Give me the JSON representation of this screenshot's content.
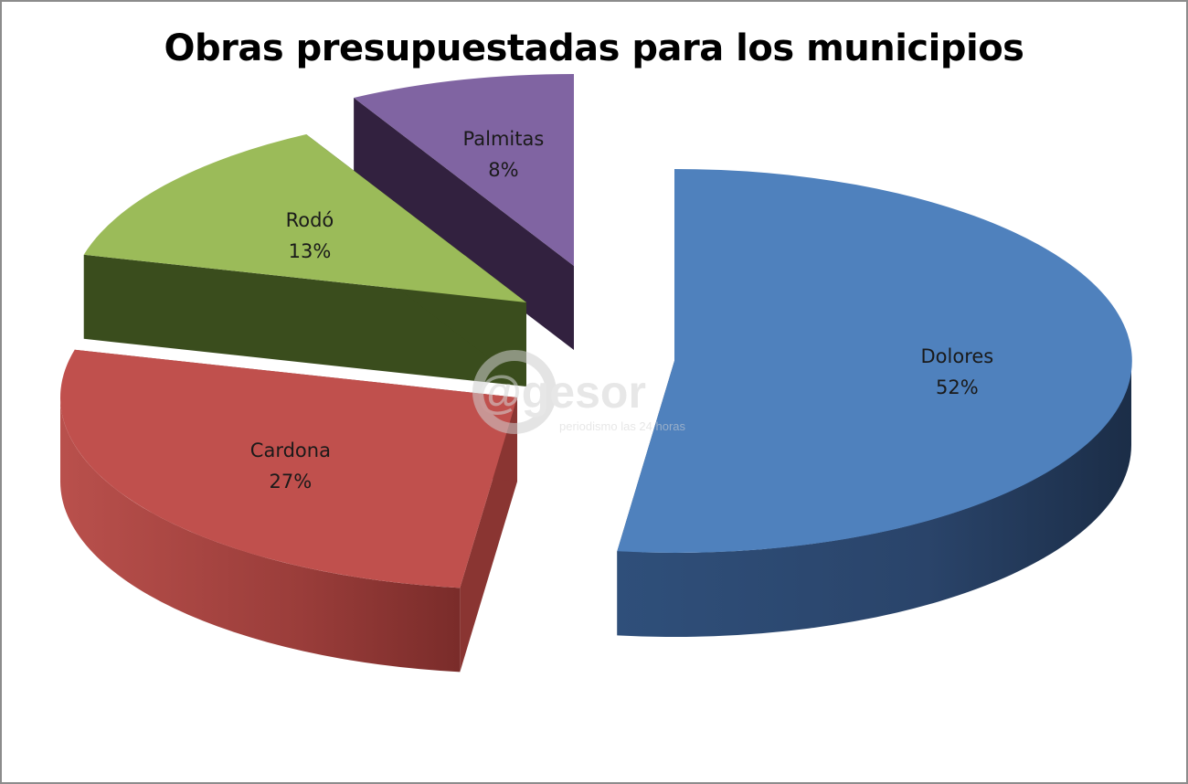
{
  "chart_data": {
    "type": "pie",
    "title": "Obras presupuestadas para los municipios",
    "slices": [
      {
        "label": "Dolores",
        "value": 52,
        "value_label": "52%",
        "color": "#4F81BD"
      },
      {
        "label": "Cardona",
        "value": 27,
        "value_label": "27%",
        "color": "#C0504D"
      },
      {
        "label": "Rodó",
        "value": 13,
        "value_label": "13%",
        "color": "#9BBB59"
      },
      {
        "label": "Palmitas",
        "value": 8,
        "value_label": "8%",
        "color": "#8064A2"
      }
    ],
    "style": "3d-exploded",
    "legend": "none"
  },
  "watermark": {
    "brand": "@gesor",
    "tagline": "periodismo las 24 horas"
  }
}
